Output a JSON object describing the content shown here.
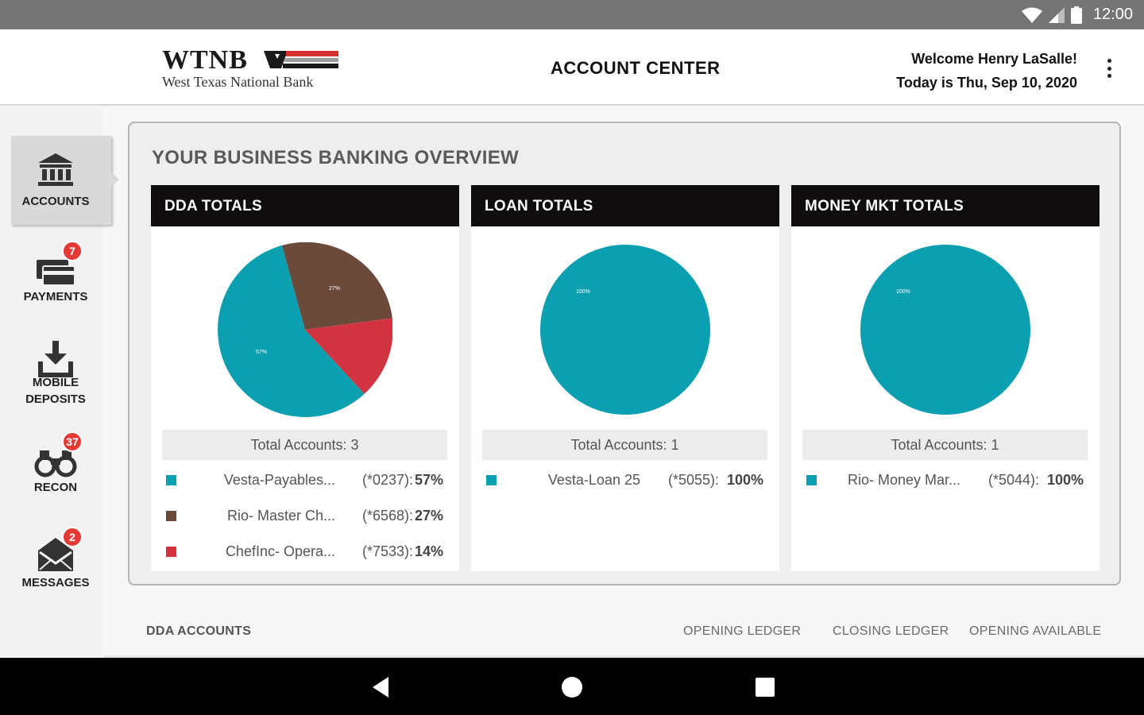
{
  "status_bar": {
    "time": "12:00",
    "icons": [
      "wifi-icon",
      "signal-icon",
      "battery-icon"
    ]
  },
  "header": {
    "logo_text": "WTNB",
    "bank_name": "West Texas National Bank",
    "title": "ACCOUNT CENTER",
    "welcome": "Welcome Henry LaSalle!",
    "date_line": "Today is Thu, Sep 10, 2020",
    "menu_icon": "more-vert-icon"
  },
  "sidebar": {
    "items": [
      {
        "label": "ACCOUNTS",
        "icon": "bank-icon",
        "active": true,
        "badge": ""
      },
      {
        "label": "PAYMENTS",
        "icon": "cards-icon",
        "active": false,
        "badge": "7"
      },
      {
        "label_line1": "MOBILE",
        "label_line2": "DEPOSITS",
        "icon": "download-tray-icon",
        "active": false,
        "badge": ""
      },
      {
        "label": "RECON",
        "icon": "binoculars-icon",
        "active": false,
        "badge": "37"
      },
      {
        "label": "MESSAGES",
        "icon": "envelope-icon",
        "active": false,
        "badge": "2"
      }
    ]
  },
  "overview": {
    "title": "YOUR BUSINESS BANKING OVERVIEW",
    "colors": {
      "teal": "#0c9fb0",
      "brown": "#6b4a3c",
      "red": "#d13440"
    },
    "cards": [
      {
        "heading": "DDA TOTALS",
        "total": "Total Accounts: 3",
        "slice_labels": [
          "57%",
          "27%",
          "14%"
        ],
        "legend": [
          {
            "name": "Vesta-Payables...",
            "acct": "(*0237):",
            "pct": "57%",
            "color": "#0c9fb0"
          },
          {
            "name": "Rio- Master Ch...",
            "acct": "(*6568):",
            "pct": "27%",
            "color": "#6b4a3c"
          },
          {
            "name": "ChefInc- Opera...",
            "acct": "(*7533):",
            "pct": "14%",
            "color": "#d13440"
          }
        ]
      },
      {
        "heading": "LOAN TOTALS",
        "total": "Total Accounts: 1",
        "slice_labels": [
          "100%"
        ],
        "legend": [
          {
            "name": "Vesta-Loan 25",
            "acct": "(*5055):",
            "pct": "100%",
            "color": "#0c9fb0"
          }
        ]
      },
      {
        "heading": "MONEY MKT TOTALS",
        "total": "Total Accounts: 1",
        "slice_labels": [
          "100%"
        ],
        "legend": [
          {
            "name": "Rio- Money Mar...",
            "acct": "(*5044):",
            "pct": "100%",
            "color": "#0c9fb0"
          }
        ]
      }
    ]
  },
  "accounts_table": {
    "section": "DDA ACCOUNTS",
    "columns": [
      "OPENING LEDGER",
      "CLOSING LEDGER",
      "OPENING AVAILABLE"
    ]
  },
  "nav_bar": {
    "buttons": [
      "back-icon",
      "home-icon",
      "recents-icon"
    ]
  }
}
